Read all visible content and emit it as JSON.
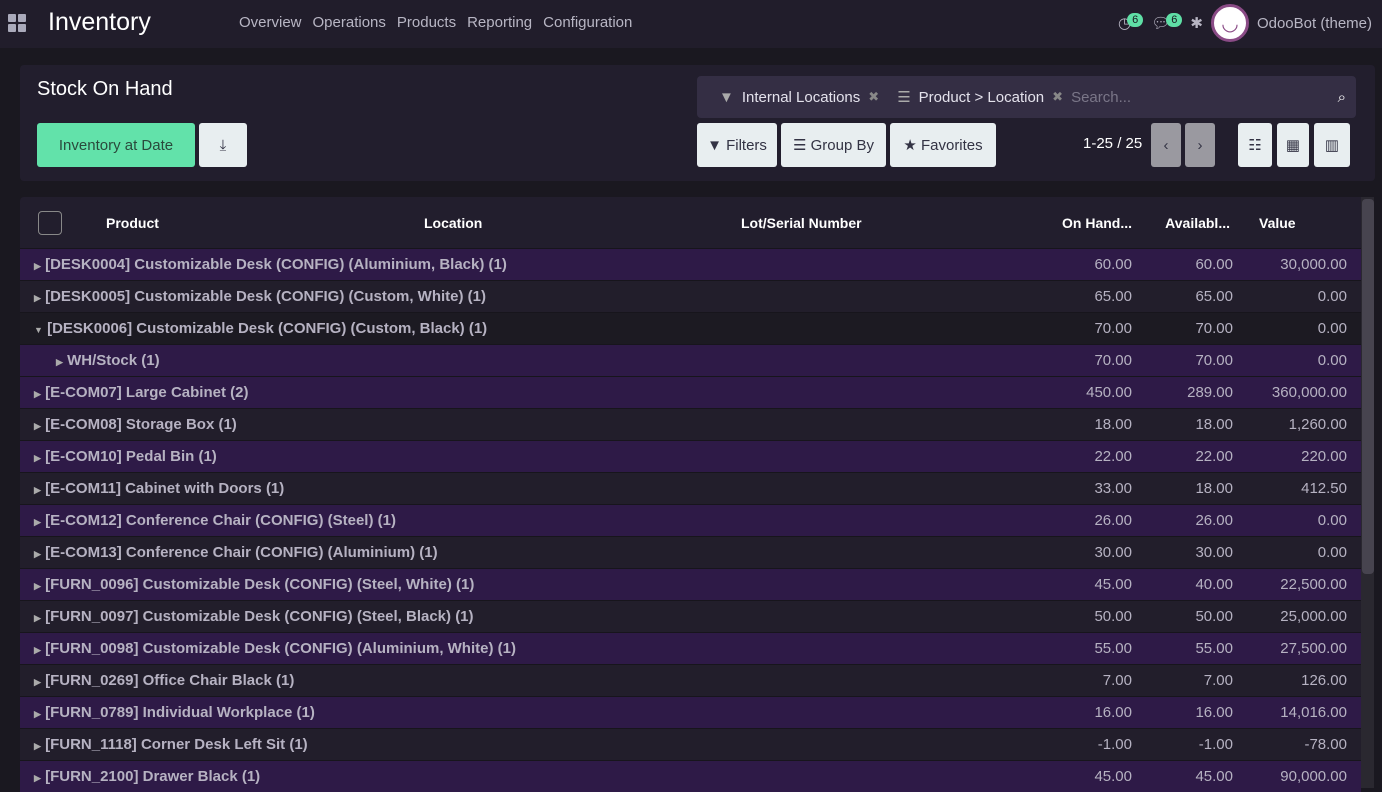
{
  "app": {
    "title": "Inventory",
    "menu": [
      "Overview",
      "Operations",
      "Products",
      "Reporting",
      "Configuration"
    ],
    "activity_count": "6",
    "message_count": "6",
    "user": "OdooBot (theme)"
  },
  "control": {
    "title": "Stock On Hand",
    "inventory_at_date": "Inventory at Date",
    "facets": [
      {
        "icon": "filter-icon",
        "label": "Internal Locations"
      },
      {
        "icon": "group-icon",
        "label": "Product > Location"
      }
    ],
    "search_placeholder": "Search...",
    "filters": "Filters",
    "group_by": "Group By",
    "favorites": "Favorites",
    "pager": "1-25 / 25"
  },
  "colors": {
    "accent": "#5fdfa6",
    "row_highlight": "#2e1a47"
  },
  "table": {
    "columns": [
      "Product",
      "Location",
      "Lot/Serial Number",
      "On Hand...",
      "Availabl...",
      "Value"
    ],
    "rows": [
      {
        "label": "[DESK0004] Customizable Desk (CONFIG) (Aluminium, Black) (1)",
        "on_hand": "60.00",
        "available": "60.00",
        "value": "30,000.00"
      },
      {
        "label": "[DESK0005] Customizable Desk (CONFIG) (Custom, White) (1)",
        "on_hand": "65.00",
        "available": "65.00",
        "value": "0.00"
      },
      {
        "label": "[DESK0006] Customizable Desk (CONFIG) (Custom, Black) (1)",
        "on_hand": "70.00",
        "available": "70.00",
        "value": "0.00",
        "expanded": true
      },
      {
        "label": "WH/Stock (1)",
        "on_hand": "70.00",
        "available": "70.00",
        "value": "0.00",
        "sub": true
      },
      {
        "label": "[E-COM07] Large Cabinet (2)",
        "on_hand": "450.00",
        "available": "289.00",
        "value": "360,000.00"
      },
      {
        "label": "[E-COM08] Storage Box (1)",
        "on_hand": "18.00",
        "available": "18.00",
        "value": "1,260.00"
      },
      {
        "label": "[E-COM10] Pedal Bin (1)",
        "on_hand": "22.00",
        "available": "22.00",
        "value": "220.00"
      },
      {
        "label": "[E-COM11] Cabinet with Doors (1)",
        "on_hand": "33.00",
        "available": "18.00",
        "value": "412.50"
      },
      {
        "label": "[E-COM12] Conference Chair (CONFIG) (Steel) (1)",
        "on_hand": "26.00",
        "available": "26.00",
        "value": "0.00"
      },
      {
        "label": "[E-COM13] Conference Chair (CONFIG) (Aluminium) (1)",
        "on_hand": "30.00",
        "available": "30.00",
        "value": "0.00"
      },
      {
        "label": "[FURN_0096] Customizable Desk (CONFIG) (Steel, White) (1)",
        "on_hand": "45.00",
        "available": "40.00",
        "value": "22,500.00"
      },
      {
        "label": "[FURN_0097] Customizable Desk (CONFIG) (Steel, Black) (1)",
        "on_hand": "50.00",
        "available": "50.00",
        "value": "25,000.00"
      },
      {
        "label": "[FURN_0098] Customizable Desk (CONFIG) (Aluminium, White) (1)",
        "on_hand": "55.00",
        "available": "55.00",
        "value": "27,500.00"
      },
      {
        "label": "[FURN_0269] Office Chair Black (1)",
        "on_hand": "7.00",
        "available": "7.00",
        "value": "126.00"
      },
      {
        "label": "[FURN_0789] Individual Workplace (1)",
        "on_hand": "16.00",
        "available": "16.00",
        "value": "14,016.00"
      },
      {
        "label": "[FURN_1118] Corner Desk Left Sit (1)",
        "on_hand": "-1.00",
        "available": "-1.00",
        "value": "-78.00"
      },
      {
        "label": "[FURN_2100] Drawer Black (1)",
        "on_hand": "45.00",
        "available": "45.00",
        "value": "90,000.00"
      }
    ]
  }
}
